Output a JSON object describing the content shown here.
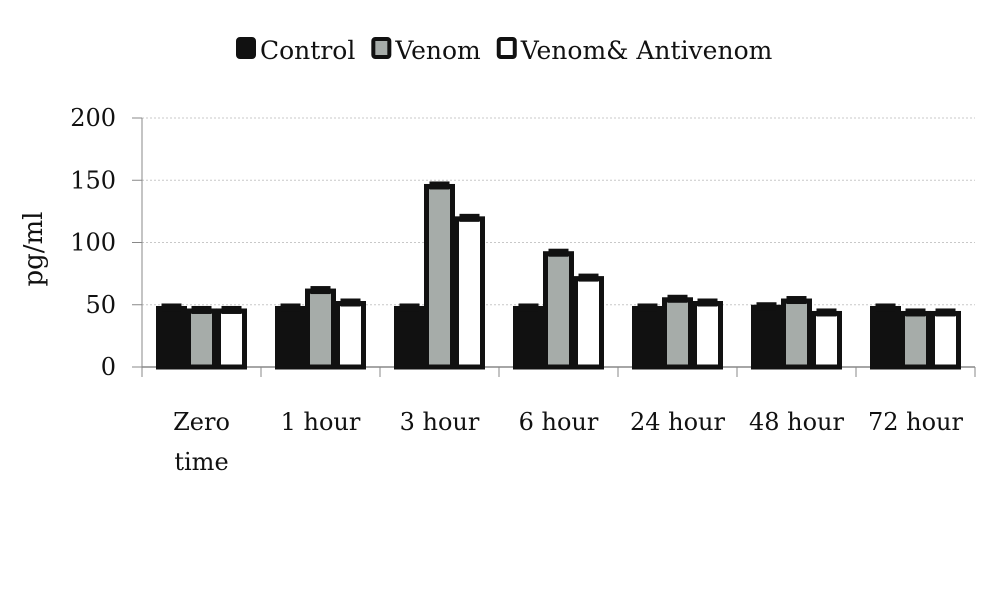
{
  "chart_data": {
    "type": "bar",
    "title": "",
    "xlabel": "",
    "ylabel": "pg/ml",
    "ylim": [
      0,
      200
    ],
    "yticks": [
      0,
      50,
      100,
      150,
      200
    ],
    "grid": true,
    "legend_position": "top-center",
    "categories": [
      [
        "Zero",
        "time"
      ],
      [
        "1 hour"
      ],
      [
        "3 hour"
      ],
      [
        "6  hour"
      ],
      [
        "24 hour"
      ],
      [
        "48 hour"
      ],
      [
        "72 hour"
      ]
    ],
    "series": [
      {
        "name": "Control",
        "color": "#111111",
        "values": [
          47,
          47,
          47,
          47,
          47,
          48,
          47
        ]
      },
      {
        "name": "Venom",
        "color": "#a6aca9",
        "values": [
          45,
          61,
          145,
          91,
          54,
          53,
          43
        ]
      },
      {
        "name": "Venom& Antivenom",
        "color": "#ffffff",
        "values": [
          45,
          51,
          119,
          71,
          51,
          43,
          43
        ]
      }
    ]
  }
}
